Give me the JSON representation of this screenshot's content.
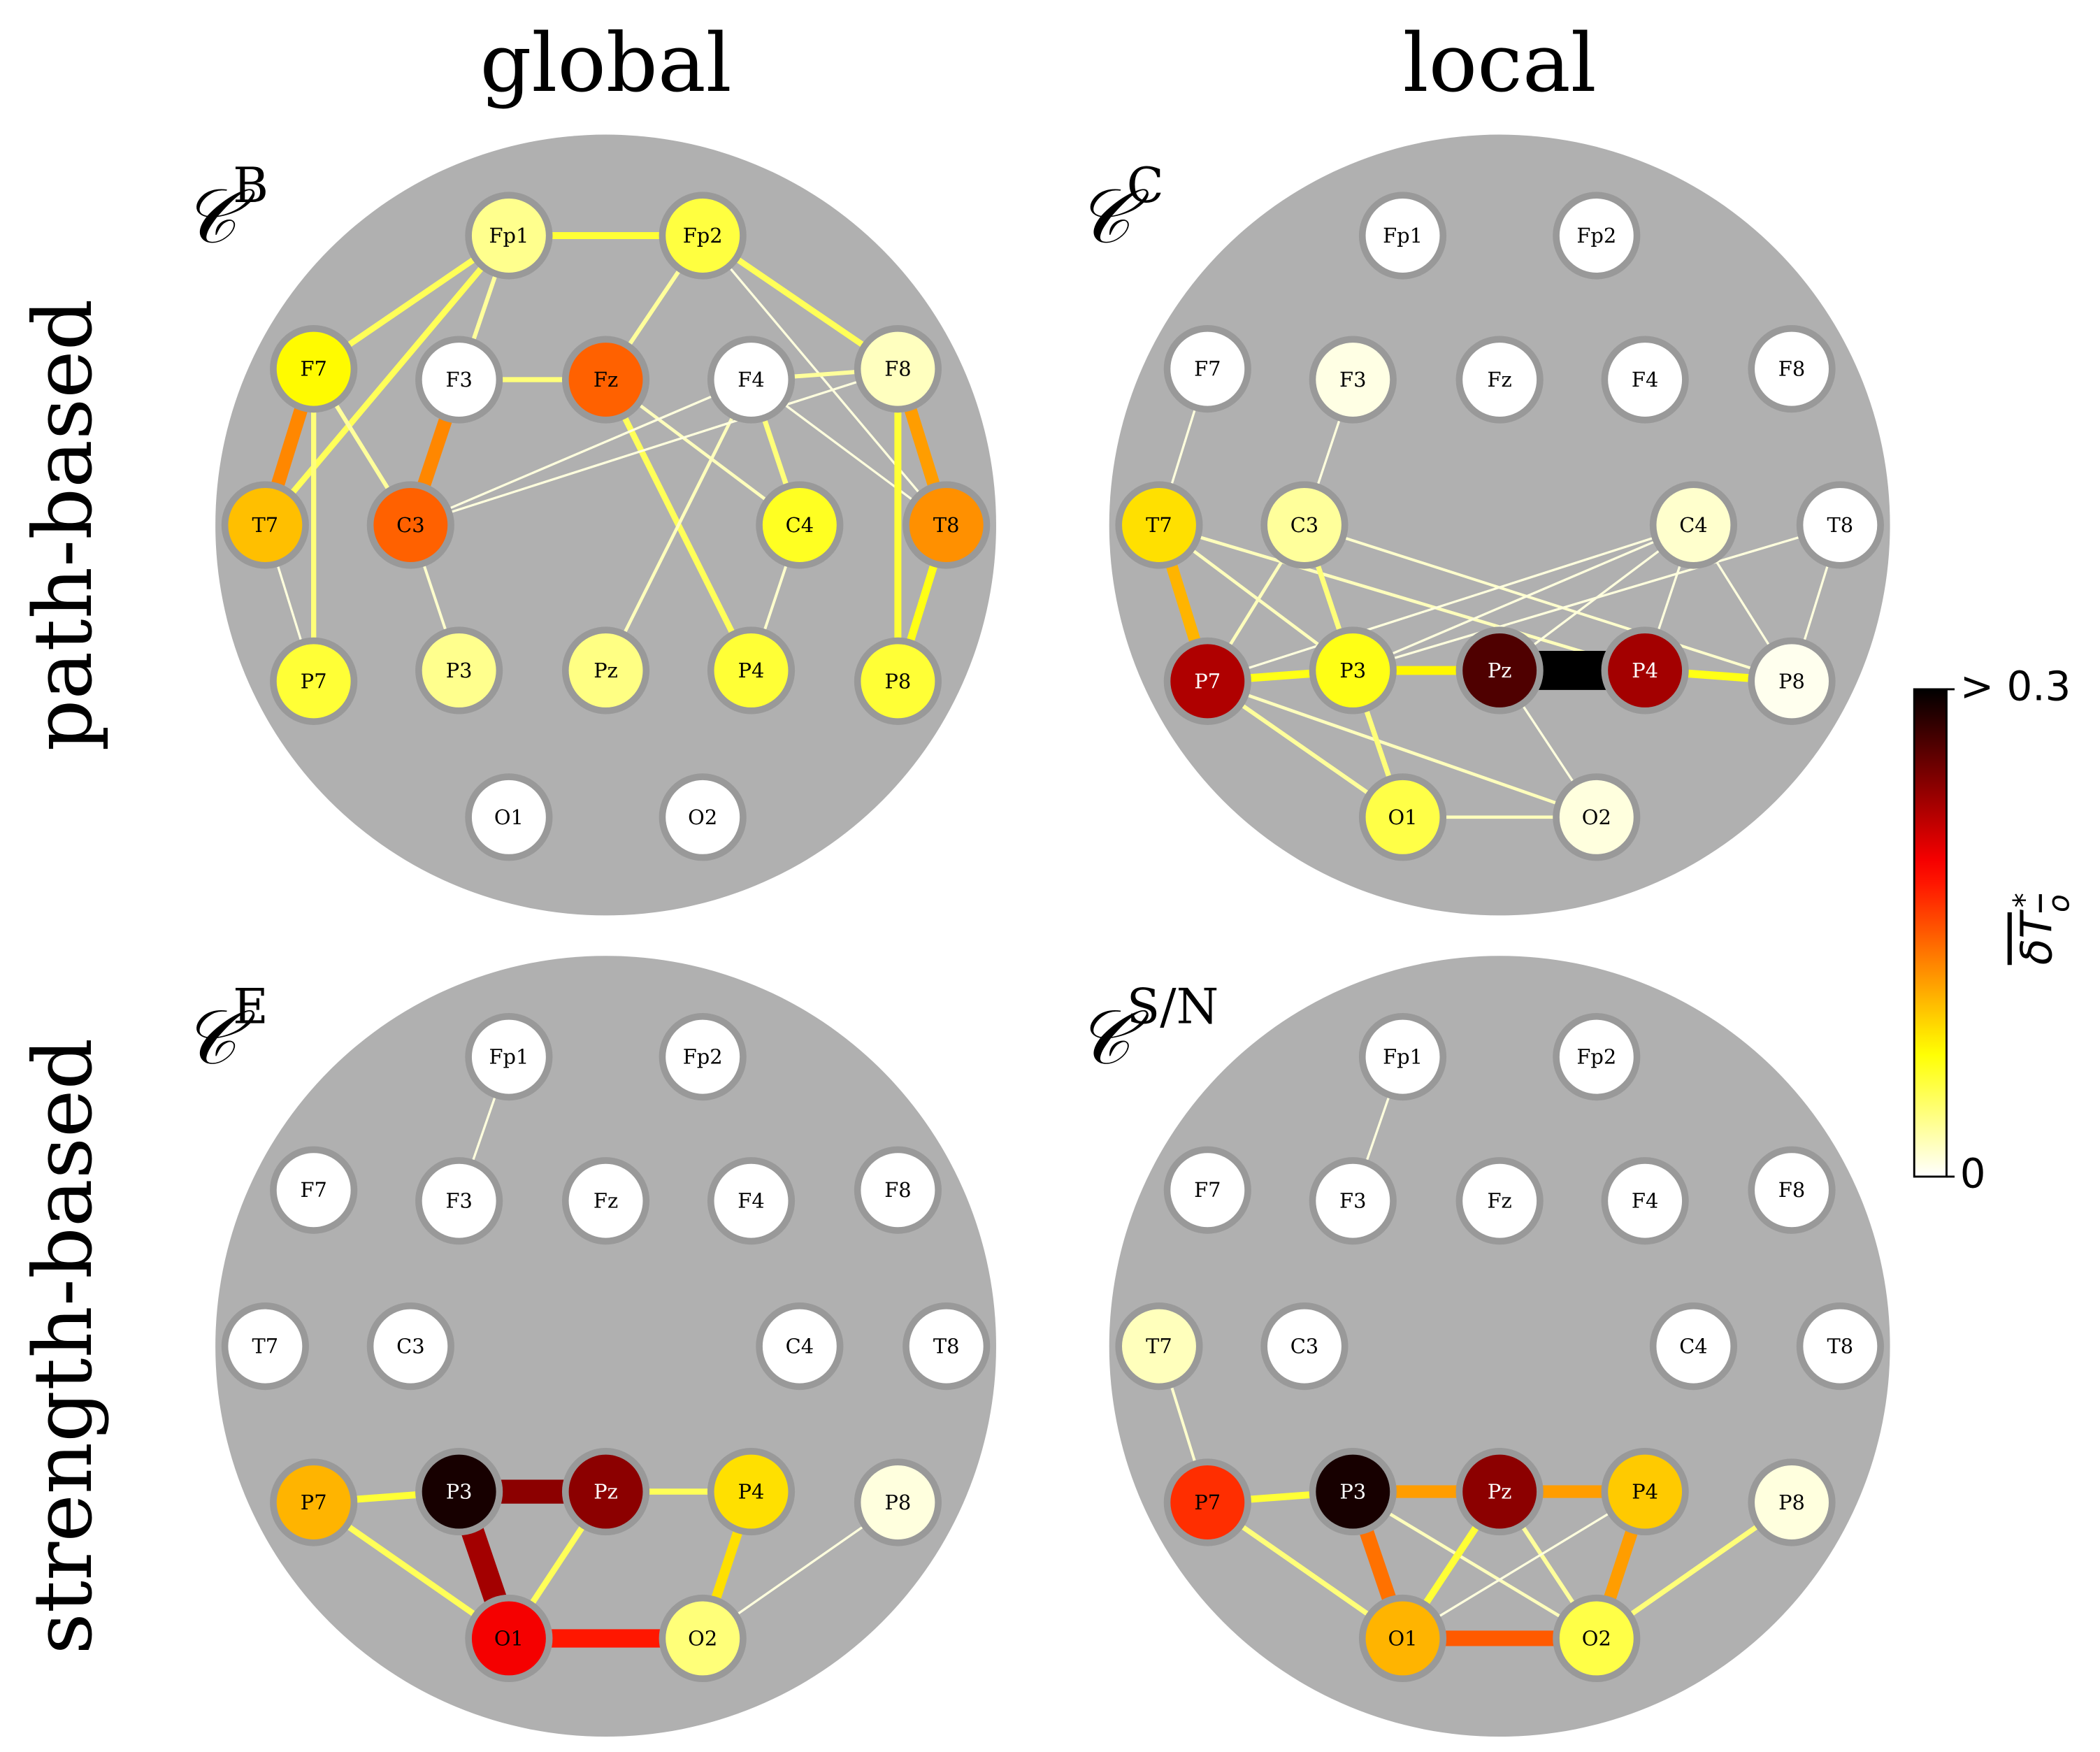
{
  "columns": [
    "global",
    "local"
  ],
  "rows": [
    "path-based",
    "strength-based"
  ],
  "electrodes": [
    "Fp1",
    "Fp2",
    "F7",
    "F3",
    "Fz",
    "F4",
    "F8",
    "T7",
    "C3",
    "C4",
    "T8",
    "P7",
    "P3",
    "Pz",
    "P4",
    "P8",
    "O1",
    "O2"
  ],
  "panels": [
    {
      "symbol": "𝒞",
      "sup": "B",
      "node_values": [
        0.034,
        0.057,
        0.078,
        0,
        0.147,
        0,
        0.019,
        0.105,
        0.147,
        0.066,
        0.126,
        0.06,
        0.034,
        0.037,
        0.06,
        0.06,
        0,
        0
      ],
      "edges": [
        {
          "from": "Fp1",
          "to": "Fp2",
          "value": 0.06
        },
        {
          "from": "Fp1",
          "to": "F7",
          "value": 0.05
        },
        {
          "from": "Fp1",
          "to": "T7",
          "value": 0.05
        },
        {
          "from": "Fp1",
          "to": "F3",
          "value": 0.01
        },
        {
          "from": "Fp1",
          "to": "C3",
          "value": 0.03
        },
        {
          "from": "Fp2",
          "to": "Fz",
          "value": 0.03
        },
        {
          "from": "Fp2",
          "to": "F8",
          "value": 0.05
        },
        {
          "from": "Fp2",
          "to": "T8",
          "value": 0.01
        },
        {
          "from": "F7",
          "to": "T7",
          "value": 0.13
        },
        {
          "from": "F7",
          "to": "P7",
          "value": 0.04
        },
        {
          "from": "F7",
          "to": "C3",
          "value": 0.03
        },
        {
          "from": "F3",
          "to": "Fz",
          "value": 0.04
        },
        {
          "from": "F3",
          "to": "C3",
          "value": 0.13
        },
        {
          "from": "Fz",
          "to": "P4",
          "value": 0.05
        },
        {
          "from": "Fz",
          "to": "C4",
          "value": 0.02
        },
        {
          "from": "F4",
          "to": "F8",
          "value": 0.03
        },
        {
          "from": "F4",
          "to": "C4",
          "value": 0.04
        },
        {
          "from": "F4",
          "to": "C3",
          "value": 0.01
        },
        {
          "from": "F4",
          "to": "Pz",
          "value": 0.02
        },
        {
          "from": "F4",
          "to": "T8",
          "value": 0.01
        },
        {
          "from": "F8",
          "to": "C3",
          "value": 0.01
        },
        {
          "from": "F8",
          "to": "T8",
          "value": 0.12
        },
        {
          "from": "F8",
          "to": "P8",
          "value": 0.06
        },
        {
          "from": "T8",
          "to": "P8",
          "value": 0.07
        },
        {
          "from": "T7",
          "to": "P7",
          "value": 0.01
        },
        {
          "from": "C3",
          "to": "P3",
          "value": 0.015
        },
        {
          "from": "C4",
          "to": "P4",
          "value": 0.015
        }
      ]
    },
    {
      "symbol": "𝒞",
      "sup": "C",
      "node_values": [
        0,
        0,
        0,
        0.008,
        0,
        0,
        0,
        0.09,
        0.03,
        0.015,
        0,
        0.225,
        0.07,
        0.266,
        0.23,
        0.005,
        0.055,
        0.01
      ],
      "edges": [
        {
          "from": "F7",
          "to": "T7",
          "value": 0.01
        },
        {
          "from": "F3",
          "to": "C3",
          "value": 0.01
        },
        {
          "from": "T7",
          "to": "P7",
          "value": 0.11
        },
        {
          "from": "T7",
          "to": "P3",
          "value": 0.02
        },
        {
          "from": "T7",
          "to": "P4",
          "value": 0.02
        },
        {
          "from": "C3",
          "to": "P7",
          "value": 0.02
        },
        {
          "from": "C3",
          "to": "P3",
          "value": 0.04
        },
        {
          "from": "C3",
          "to": "P8",
          "value": 0.015
        },
        {
          "from": "C4",
          "to": "P7",
          "value": 0.01
        },
        {
          "from": "C4",
          "to": "P3",
          "value": 0.01
        },
        {
          "from": "C4",
          "to": "Pz",
          "value": 0.01
        },
        {
          "from": "C4",
          "to": "P4",
          "value": 0.01
        },
        {
          "from": "C4",
          "to": "P8",
          "value": 0.01
        },
        {
          "from": "T8",
          "to": "P3",
          "value": 0.01
        },
        {
          "from": "T8",
          "to": "P8",
          "value": 0.01
        },
        {
          "from": "P7",
          "to": "P3",
          "value": 0.07
        },
        {
          "from": "P3",
          "to": "Pz",
          "value": 0.08
        },
        {
          "from": "Pz",
          "to": "P4",
          "value": 0.4
        },
        {
          "from": "P4",
          "to": "P8",
          "value": 0.07
        },
        {
          "from": "P7",
          "to": "O1",
          "value": 0.03
        },
        {
          "from": "P7",
          "to": "O2",
          "value": 0.02
        },
        {
          "from": "P3",
          "to": "O1",
          "value": 0.04
        },
        {
          "from": "Pz",
          "to": "O2",
          "value": 0.01
        },
        {
          "from": "O1",
          "to": "O2",
          "value": 0.02
        }
      ]
    },
    {
      "symbol": "𝒞",
      "sup": "E",
      "node_values": [
        0,
        0,
        0,
        0,
        0,
        0,
        0,
        0,
        0,
        0,
        0,
        0.11,
        0.29,
        0.24,
        0.09,
        0.01,
        0.195,
        0.04
      ],
      "edges": [
        {
          "from": "Fp1",
          "to": "F3",
          "value": 0.01
        },
        {
          "from": "P7",
          "to": "P3",
          "value": 0.06
        },
        {
          "from": "P3",
          "to": "Pz",
          "value": 0.24
        },
        {
          "from": "Pz",
          "to": "P4",
          "value": 0.05
        },
        {
          "from": "P7",
          "to": "O1",
          "value": 0.05
        },
        {
          "from": "P3",
          "to": "O1",
          "value": 0.23
        },
        {
          "from": "Pz",
          "to": "O1",
          "value": 0.05
        },
        {
          "from": "P4",
          "to": "O2",
          "value": 0.09
        },
        {
          "from": "O1",
          "to": "O2",
          "value": 0.18
        },
        {
          "from": "P8",
          "to": "O2",
          "value": 0.01
        }
      ]
    },
    {
      "symbol": "𝒞",
      "sup": "S/N",
      "node_values": [
        0,
        0,
        0,
        0,
        0,
        0,
        0,
        0.02,
        0,
        0,
        0,
        0.17,
        0.29,
        0.24,
        0.1,
        0.01,
        0.11,
        0.055
      ],
      "edges": [
        {
          "from": "Fp1",
          "to": "F3",
          "value": 0.01
        },
        {
          "from": "T7",
          "to": "P7",
          "value": 0.015
        },
        {
          "from": "P7",
          "to": "P3",
          "value": 0.06
        },
        {
          "from": "P3",
          "to": "Pz",
          "value": 0.12
        },
        {
          "from": "Pz",
          "to": "P4",
          "value": 0.12
        },
        {
          "from": "P7",
          "to": "O1",
          "value": 0.04
        },
        {
          "from": "P3",
          "to": "O1",
          "value": 0.14
        },
        {
          "from": "P3",
          "to": "O2",
          "value": 0.02
        },
        {
          "from": "Pz",
          "to": "O1",
          "value": 0.06
        },
        {
          "from": "Pz",
          "to": "O2",
          "value": 0.03
        },
        {
          "from": "P4",
          "to": "O1",
          "value": 0.01
        },
        {
          "from": "P4",
          "to": "O2",
          "value": 0.12
        },
        {
          "from": "P8",
          "to": "O2",
          "value": 0.04
        },
        {
          "from": "O1",
          "to": "O2",
          "value": 0.15
        }
      ]
    }
  ],
  "colorbar": {
    "label": "δT",
    "sub": "o",
    "sup": "*",
    "lim": [
      0,
      0.3
    ],
    "ticks": [
      {
        "value": 0,
        "label": "0"
      },
      {
        "value": 0.3,
        "label": "> 0.3"
      }
    ]
  }
}
